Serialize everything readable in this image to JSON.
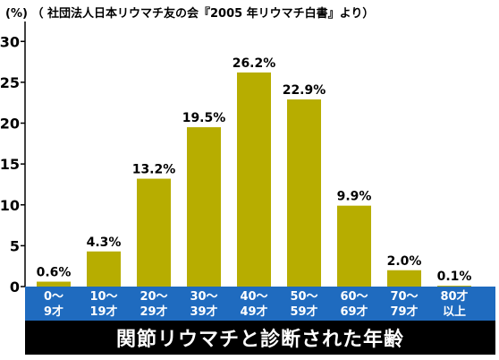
{
  "header": {
    "unit": "(%)",
    "source": "（ 社団法人日本リウマチ友の会『2005 年リウマチ白書』より）"
  },
  "footer": {
    "banner": "関節リウマチと診断された年齢"
  },
  "colors": {
    "bar": "#b7ad00",
    "axis_band": "#1f6bbf",
    "banner": "#000000"
  },
  "chart_data": {
    "type": "bar",
    "title": "",
    "xlabel": "関節リウマチと診断された年齢",
    "ylabel": "(%)",
    "ylim": [
      0,
      32
    ],
    "yticks": [
      0,
      5,
      10,
      15,
      20,
      25,
      30
    ],
    "grid": false,
    "categories": [
      [
        "0〜",
        "9才"
      ],
      [
        "10〜",
        "19才"
      ],
      [
        "20〜",
        "29才"
      ],
      [
        "30〜",
        "39才"
      ],
      [
        "40〜",
        "49才"
      ],
      [
        "50〜",
        "59才"
      ],
      [
        "60〜",
        "69才"
      ],
      [
        "70〜",
        "79才"
      ],
      [
        "80才",
        "以上"
      ]
    ],
    "values": [
      0.6,
      4.3,
      13.2,
      19.5,
      26.2,
      22.9,
      9.9,
      2.0,
      0.1
    ],
    "value_labels": [
      "0.6%",
      "4.3%",
      "13.2%",
      "19.5%",
      "26.2%",
      "22.9%",
      "9.9%",
      "2.0%",
      "0.1%"
    ]
  }
}
